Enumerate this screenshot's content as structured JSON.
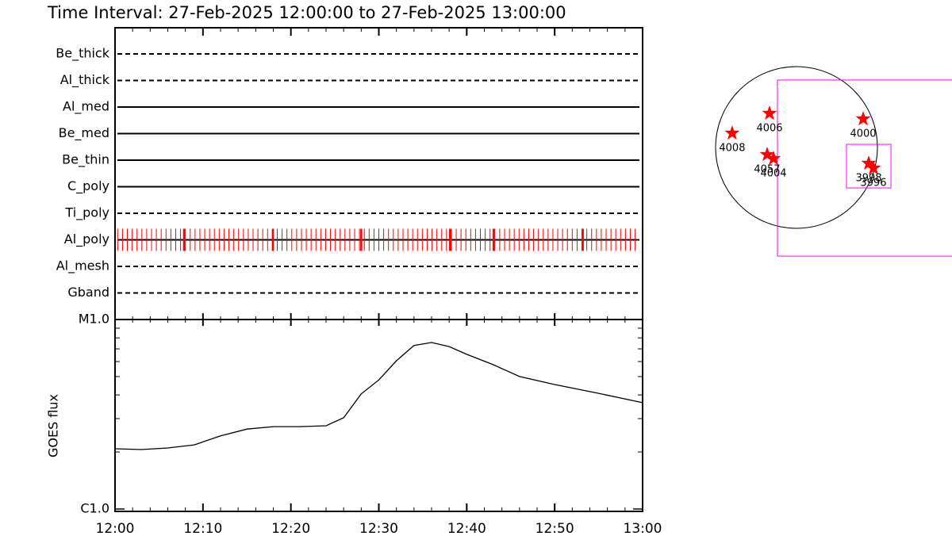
{
  "chart_data": [
    {
      "type": "timeline",
      "title": "Time Interval: 27-Feb-2025 12:00:00 to 27-Feb-2025 13:00:00",
      "categories": [
        "Be_thick",
        "Al_thick",
        "Al_med",
        "Be_med",
        "Be_thin",
        "C_poly",
        "Ti_poly",
        "Al_poly",
        "Al_mesh",
        "Gband"
      ],
      "line_styles": [
        "dashed",
        "dashed",
        "solid",
        "solid",
        "solid",
        "solid",
        "dashed",
        "solid",
        "dashed",
        "dashed"
      ],
      "xlim": [
        0,
        60
      ],
      "series": [
        {
          "name": "Al_poly",
          "color": "#ff0000",
          "x": [
            0.3,
            0.85,
            1.4,
            1.95,
            2.5,
            3.05,
            3.6,
            4.15,
            4.7,
            5.25,
            5.8,
            6.35,
            6.9,
            7.45,
            8.0,
            8.55,
            9.1,
            9.65,
            10.2,
            10.75,
            11.3,
            11.85,
            12.4,
            12.95,
            13.5,
            14.05,
            14.6,
            15.15,
            15.7,
            16.25,
            16.8,
            17.35,
            17.9,
            18.45,
            19.0,
            19.55,
            20.1,
            20.65,
            21.2,
            21.75,
            22.3,
            22.85,
            23.4,
            23.95,
            24.5,
            25.05,
            25.6,
            26.15,
            26.7,
            27.25,
            27.8,
            28.35,
            28.9,
            29.45,
            30.0,
            30.55,
            31.1,
            31.65,
            32.2,
            32.75,
            33.3,
            33.85,
            34.4,
            34.95,
            35.5,
            36.05,
            36.6,
            37.15,
            37.7,
            38.25,
            38.8,
            39.35,
            39.9,
            40.45,
            41.0,
            41.55,
            42.1,
            42.65,
            43.2,
            43.75,
            44.3,
            44.85,
            45.4,
            45.95,
            46.5,
            47.05,
            47.6,
            48.15,
            48.7,
            49.25,
            49.8,
            50.35,
            50.9,
            51.45,
            52.0,
            52.55,
            53.1,
            53.65,
            54.2,
            54.75,
            55.3,
            55.85,
            56.4,
            56.95,
            57.5,
            58.05,
            58.6,
            59.15
          ],
          "width": 1
        },
        {
          "name": "Al_poly",
          "color": "#ff0000",
          "x": [
            7.85,
            17.95,
            28.0,
            38.1,
            43.05,
            53.2
          ],
          "width": 2.5
        }
      ]
    },
    {
      "type": "line",
      "ylabel": "GOES flux",
      "color": "#000000",
      "log_scale": true,
      "x": [
        0,
        3,
        6,
        9,
        12,
        15,
        18,
        21,
        24,
        26,
        28,
        30,
        32,
        34,
        36,
        38,
        40,
        43,
        46,
        50,
        55,
        60
      ],
      "values": [
        2.08e-06,
        2.06e-06,
        2.1e-06,
        2.18e-06,
        2.43e-06,
        2.64e-06,
        2.72e-06,
        2.72e-06,
        2.75e-06,
        3.03e-06,
        4.05e-06,
        4.8e-06,
        6.06e-06,
        7.3e-06,
        7.56e-06,
        7.2e-06,
        6.55e-06,
        5.78e-06,
        5e-06,
        4.54e-06,
        4.08e-06,
        3.64e-06
      ],
      "xlim": [
        0,
        60
      ],
      "xticks": [
        {
          "value": 0,
          "label": "12:00"
        },
        {
          "value": 10,
          "label": "12:10"
        },
        {
          "value": 20,
          "label": "12:20"
        },
        {
          "value": 30,
          "label": "12:30"
        },
        {
          "value": 40,
          "label": "12:40"
        },
        {
          "value": 50,
          "label": "12:50"
        },
        {
          "value": 60,
          "label": "13:00"
        }
      ],
      "ylim": [
        1e-06,
        1e-05
      ],
      "yticks": [
        {
          "value": 1e-06,
          "label": "C1.0"
        },
        {
          "value": 1e-05,
          "label": "M1.0"
        }
      ]
    },
    {
      "type": "map",
      "solar_radius": 975,
      "color": "#ff0000",
      "box_color": "#ff00ff",
      "labels": [
        "4006",
        "4000",
        "4008",
        "4057",
        "4004",
        "3998",
        "3996"
      ],
      "x": [
        -325,
        803,
        -775,
        -354,
        -277,
        870,
        927
      ],
      "y": [
        411,
        344,
        172,
        -86,
        -134,
        -191,
        -249
      ],
      "boxes": [
        {
          "x": [
            -230,
            1892
          ],
          "y": [
            813,
            -1310
          ]
        },
        {
          "x": [
            602,
            1138
          ],
          "y": [
            38,
            -488
          ]
        }
      ]
    }
  ]
}
